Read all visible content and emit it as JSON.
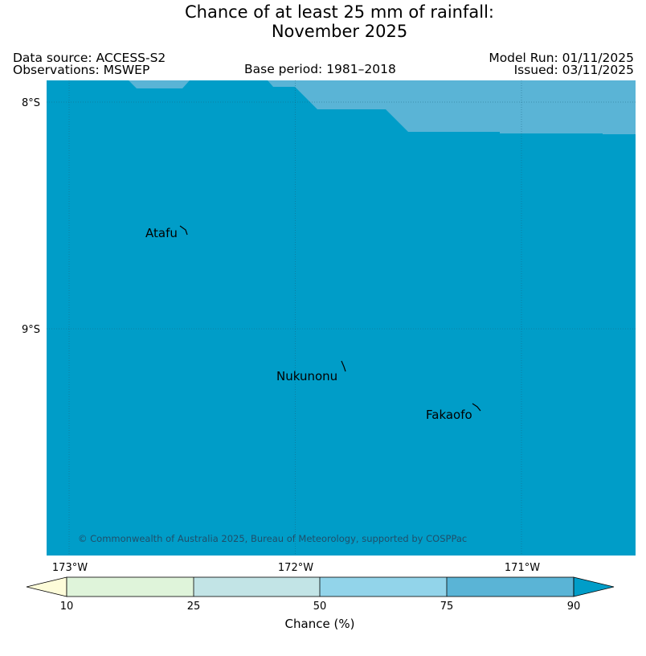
{
  "title": {
    "line1": "Chance of at least 25 mm of rainfall:",
    "line2": "November 2025"
  },
  "meta": {
    "data_source": "Data source: ACCESS-S2",
    "observations": "Observations: MSWEP",
    "base_period": "Base period: 1981–2018",
    "model_run": "Model Run: 01/11/2025",
    "issued": "Issued: 03/11/2025"
  },
  "map": {
    "lat_labels": [
      "8°S",
      "9°S"
    ],
    "lon_labels": [
      "173°W",
      "172°W",
      "171°W"
    ],
    "places": [
      {
        "name": "Atafu"
      },
      {
        "name": "Nukunonu"
      },
      {
        "name": "Fakaofo"
      }
    ],
    "copyright": "© Commonwealth of Australia 2025, Bureau of Meteorology, supported by COSPPac",
    "colors": {
      "over_90": "#009dc8",
      "band_75_90": "#5ab4d6"
    }
  },
  "colorbar": {
    "label": "Chance (%)",
    "ticks": [
      "10",
      "25",
      "50",
      "75",
      "90"
    ],
    "colors": {
      "under_10": "#fdfcd9",
      "band_10_25": "#dff4da",
      "band_25_50": "#c2e4e6",
      "band_50_75": "#92d4ea",
      "band_75_90": "#5ab4d6",
      "over_90": "#009dc8"
    }
  }
}
